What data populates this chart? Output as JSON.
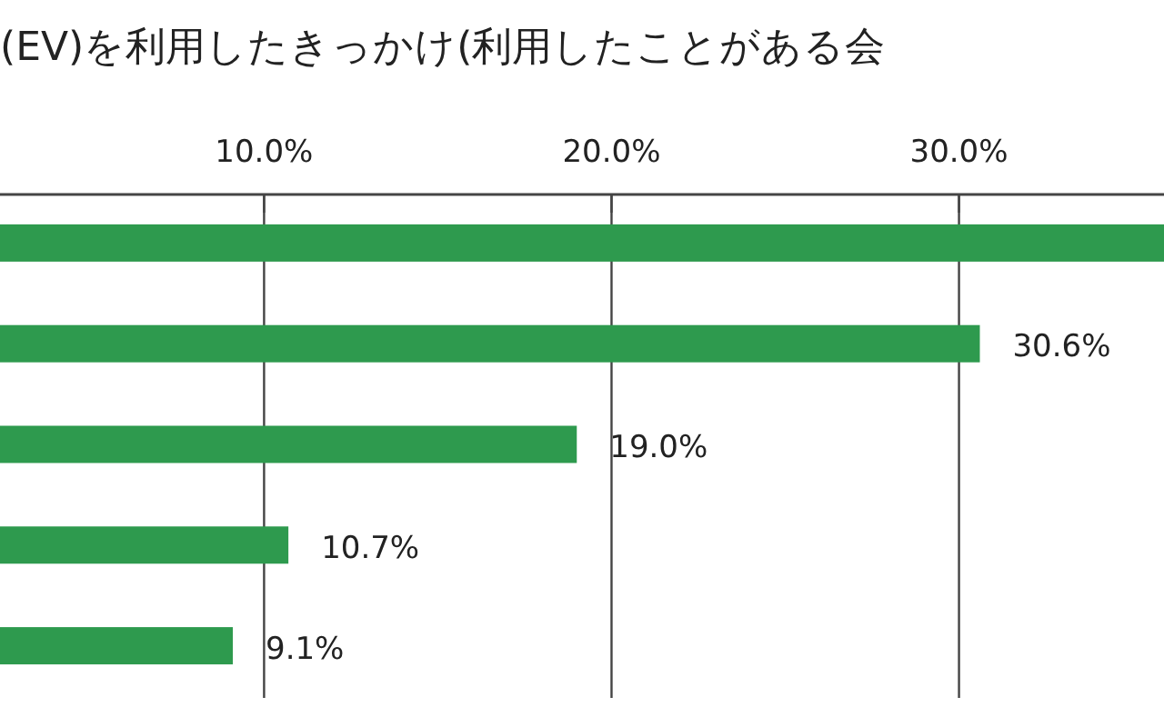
{
  "chart_data": {
    "type": "bar",
    "orientation": "horizontal",
    "title": "(EV)を利用したきっかけ(利用したことがある会",
    "categories": [
      null,
      null,
      null,
      null,
      null
    ],
    "values": [
      35.9,
      30.6,
      19.0,
      10.7,
      9.1
    ],
    "value_labels": [
      null,
      "30.6%",
      "19.0%",
      "10.7%",
      "9.1%"
    ],
    "color": "#2e9a4e",
    "xlim": [
      2.4,
      35.9
    ],
    "xticks": [
      {
        "value": 10,
        "label": "10.0%"
      },
      {
        "value": 20,
        "label": "20.0%"
      },
      {
        "value": 30,
        "label": "30.0%"
      }
    ],
    "grid": "x",
    "tick_labels": "x"
  }
}
